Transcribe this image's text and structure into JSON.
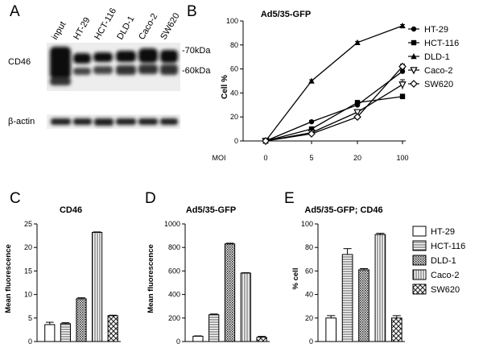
{
  "panels": {
    "A": "A",
    "B": "B",
    "C": "C",
    "D": "D",
    "E": "E"
  },
  "blot": {
    "lanes": [
      "input",
      "HT-29",
      "HCT-116",
      "DLD-1",
      "Caco-2",
      "SW620"
    ],
    "row_labels": [
      "CD46",
      "β-actin"
    ],
    "size_markers": [
      "-70kDa",
      "-60kDa"
    ]
  },
  "chart_data": [
    {
      "type": "line",
      "panel": "B",
      "title": "Ad5/35-GFP",
      "xlabel": "MOI",
      "ylabel": "Cell %",
      "x": [
        "0",
        "5",
        "20",
        "100"
      ],
      "ylim": [
        0,
        100
      ],
      "yticks": [
        0,
        20,
        40,
        60,
        80,
        100
      ],
      "grid": false,
      "legend": "right",
      "series": [
        {
          "name": "HT-29",
          "marker": "circle-filled",
          "values": [
            0,
            16,
            30,
            58
          ],
          "err": [
            0,
            1,
            1,
            2
          ]
        },
        {
          "name": "HCT-116",
          "marker": "square-filled",
          "values": [
            0,
            10,
            32,
            37
          ],
          "err": [
            0,
            1,
            1,
            2
          ]
        },
        {
          "name": "DLD-1",
          "marker": "triangle-filled",
          "values": [
            0,
            50,
            82,
            96
          ],
          "err": [
            0,
            1,
            1,
            1
          ]
        },
        {
          "name": "Caco-2",
          "marker": "triangle-down-open",
          "values": [
            0,
            7,
            24,
            47
          ],
          "err": [
            0,
            1,
            1,
            4
          ]
        },
        {
          "name": "SW620",
          "marker": "diamond-open",
          "values": [
            0,
            6,
            20,
            62
          ],
          "err": [
            0,
            1,
            1,
            2
          ]
        }
      ]
    },
    {
      "type": "bar",
      "panel": "C",
      "title": "CD46",
      "ylabel": "Mean fluorescence",
      "categories": [
        "HT-29",
        "HCT-116",
        "DLD-1",
        "Caco-2",
        "SW620"
      ],
      "values": [
        3.6,
        3.8,
        9.1,
        23.2,
        5.5
      ],
      "err": [
        0.5,
        0.2,
        0.2,
        0.1,
        0.1
      ],
      "ylim": [
        0,
        25
      ],
      "yticks": [
        0,
        5,
        10,
        15,
        20,
        25
      ]
    },
    {
      "type": "bar",
      "panel": "D",
      "title": "Ad5/35-GFP",
      "ylabel": "Mean fluorescence",
      "categories": [
        "HT-29",
        "HCT-116",
        "DLD-1",
        "Caco-2",
        "SW620"
      ],
      "values": [
        45,
        228,
        830,
        582,
        36
      ],
      "err": [
        3,
        6,
        6,
        3,
        8
      ],
      "ylim": [
        0,
        1000
      ],
      "yticks": [
        0,
        200,
        400,
        600,
        800,
        1000
      ]
    },
    {
      "type": "bar",
      "panel": "E",
      "title": "Ad5/35-GFP; CD46",
      "ylabel": "% cell",
      "categories": [
        "HT-29",
        "HCT-116",
        "DLD-1",
        "Caco-2",
        "SW620"
      ],
      "values": [
        20,
        74,
        61,
        91,
        20
      ],
      "err": [
        2,
        5,
        1,
        1,
        2
      ],
      "ylim": [
        0,
        100
      ],
      "yticks": [
        0,
        20,
        40,
        60,
        80,
        100
      ],
      "legend": "right",
      "legend_entries": [
        "HT-29",
        "HCT-116",
        "DLD-1",
        "Caco-2",
        "SW620"
      ]
    }
  ]
}
